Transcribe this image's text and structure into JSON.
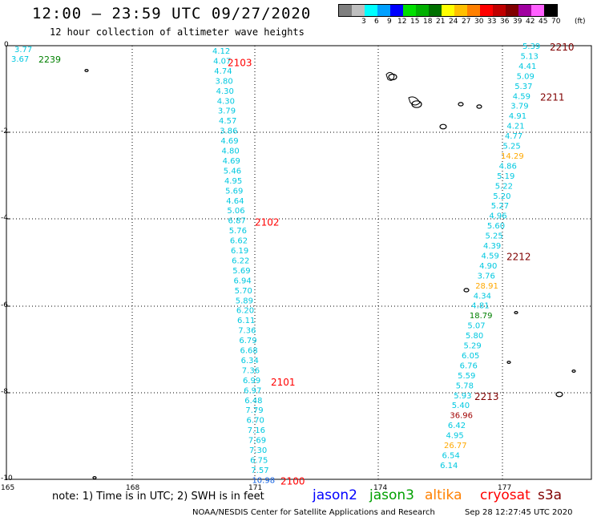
{
  "header": {
    "title": "12:00 – 23:59 UTC 09/27/2020",
    "subtitle": "12 hour collection of altimeter wave heights"
  },
  "legend": {
    "unit": "(ft)",
    "bins": [
      {
        "label": "",
        "color": "#7f7f7f"
      },
      {
        "label": "3",
        "color": "#bfbfbf"
      },
      {
        "label": "6",
        "color": "#00ffff"
      },
      {
        "label": "9",
        "color": "#00a0ff"
      },
      {
        "label": "12",
        "color": "#0000ff"
      },
      {
        "label": "15",
        "color": "#00e000"
      },
      {
        "label": "18",
        "color": "#00b000"
      },
      {
        "label": "21",
        "color": "#007000"
      },
      {
        "label": "24",
        "color": "#ffff00"
      },
      {
        "label": "27",
        "color": "#ffc000"
      },
      {
        "label": "30",
        "color": "#ff8000"
      },
      {
        "label": "33",
        "color": "#ff0000"
      },
      {
        "label": "36",
        "color": "#c00000"
      },
      {
        "label": "39",
        "color": "#800000"
      },
      {
        "label": "42",
        "color": "#a000a0"
      },
      {
        "label": "45",
        "color": "#ff60ff"
      },
      {
        "label": "70",
        "color": "#000000"
      }
    ]
  },
  "axes": {
    "lon_labels": [
      "165",
      "168",
      "171",
      "174",
      "177"
    ],
    "lat_labels": [
      "0",
      "-2",
      "-4",
      "-6",
      "-8",
      "-10"
    ]
  },
  "colors": {
    "cyan": "#00c8e0",
    "blue": "#1060e0",
    "orange": "#ffa800",
    "green": "#008000",
    "red": "#ff0000",
    "darkred": "#a00000",
    "maroon": "#800000"
  },
  "tracks": [
    {
      "name": "track-a",
      "values": [
        {
          "v": "3.77",
          "c": "cyan"
        },
        {
          "v": "3.67",
          "c": "cyan"
        }
      ],
      "time": {
        "text": "2239",
        "c": "green"
      }
    },
    {
      "name": "track-b",
      "values": [
        {
          "v": "4.12",
          "c": "cyan"
        },
        {
          "v": "4.07",
          "c": "cyan"
        },
        {
          "v": "4.74",
          "c": "cyan"
        },
        {
          "v": "3.80",
          "c": "cyan"
        },
        {
          "v": "4.30",
          "c": "cyan"
        },
        {
          "v": "4.30",
          "c": "cyan"
        },
        {
          "v": "3.79",
          "c": "cyan"
        },
        {
          "v": "4.57",
          "c": "cyan"
        },
        {
          "v": "3.86",
          "c": "cyan"
        },
        {
          "v": "4.69",
          "c": "cyan"
        },
        {
          "v": "4.80",
          "c": "cyan"
        },
        {
          "v": "4.69",
          "c": "cyan"
        },
        {
          "v": "5.46",
          "c": "cyan"
        },
        {
          "v": "4.95",
          "c": "cyan"
        },
        {
          "v": "5.69",
          "c": "cyan"
        },
        {
          "v": "4.64",
          "c": "cyan"
        },
        {
          "v": "5.06",
          "c": "cyan"
        },
        {
          "v": "6.87",
          "c": "cyan"
        },
        {
          "v": "5.76",
          "c": "cyan"
        },
        {
          "v": "6.62",
          "c": "cyan"
        },
        {
          "v": "6.19",
          "c": "cyan"
        },
        {
          "v": "6.22",
          "c": "cyan"
        },
        {
          "v": "5.69",
          "c": "cyan"
        },
        {
          "v": "6.94",
          "c": "cyan"
        },
        {
          "v": "5.70",
          "c": "cyan"
        },
        {
          "v": "5.89",
          "c": "cyan"
        },
        {
          "v": "6.20",
          "c": "cyan"
        },
        {
          "v": "6.11",
          "c": "cyan"
        },
        {
          "v": "7.36",
          "c": "cyan"
        },
        {
          "v": "6.79",
          "c": "cyan"
        },
        {
          "v": "6.68",
          "c": "cyan"
        },
        {
          "v": "6.34",
          "c": "cyan"
        },
        {
          "v": "7.36",
          "c": "cyan"
        },
        {
          "v": "6.99",
          "c": "cyan"
        },
        {
          "v": "6.97",
          "c": "cyan"
        },
        {
          "v": "6.48",
          "c": "cyan"
        },
        {
          "v": "7.79",
          "c": "cyan"
        },
        {
          "v": "6.70",
          "c": "cyan"
        },
        {
          "v": "7.16",
          "c": "cyan"
        },
        {
          "v": "7.69",
          "c": "cyan"
        },
        {
          "v": "7.30",
          "c": "cyan"
        },
        {
          "v": "6.75",
          "c": "cyan"
        },
        {
          "v": "7.57",
          "c": "cyan"
        },
        {
          "v": "10.98",
          "c": "blue"
        }
      ],
      "times": [
        {
          "text": "2103",
          "c": "red",
          "at": 1
        },
        {
          "text": "2102",
          "c": "red",
          "at": 17
        },
        {
          "text": "2101",
          "c": "red",
          "at": 33
        },
        {
          "text": "2100",
          "c": "red",
          "at": 43
        }
      ]
    },
    {
      "name": "track-c",
      "values": [
        {
          "v": "5.39",
          "c": "cyan"
        },
        {
          "v": "5.13",
          "c": "cyan"
        },
        {
          "v": "4.41",
          "c": "cyan"
        },
        {
          "v": "5.09",
          "c": "cyan"
        },
        {
          "v": "5.37",
          "c": "cyan"
        },
        {
          "v": "4.59",
          "c": "cyan"
        },
        {
          "v": "3.79",
          "c": "cyan"
        },
        {
          "v": "4.91",
          "c": "cyan"
        },
        {
          "v": "4.21",
          "c": "cyan"
        },
        {
          "v": "4.77",
          "c": "cyan"
        },
        {
          "v": "5.25",
          "c": "cyan"
        },
        {
          "v": "14.29",
          "c": "orange"
        },
        {
          "v": "4.86",
          "c": "cyan"
        },
        {
          "v": "5.19",
          "c": "cyan"
        },
        {
          "v": "5.22",
          "c": "cyan"
        },
        {
          "v": "5.20",
          "c": "cyan"
        },
        {
          "v": "5.27",
          "c": "cyan"
        },
        {
          "v": "4.96",
          "c": "cyan"
        },
        {
          "v": "5.60",
          "c": "cyan"
        },
        {
          "v": "5.25",
          "c": "cyan"
        },
        {
          "v": "4.39",
          "c": "cyan"
        },
        {
          "v": "4.59",
          "c": "cyan"
        },
        {
          "v": "4.90",
          "c": "cyan"
        },
        {
          "v": "3.76",
          "c": "cyan"
        },
        {
          "v": "28.91",
          "c": "orange"
        },
        {
          "v": "4.34",
          "c": "cyan"
        },
        {
          "v": "4.81",
          "c": "cyan"
        },
        {
          "v": "18.79",
          "c": "green"
        },
        {
          "v": "5.07",
          "c": "cyan"
        },
        {
          "v": "5.80",
          "c": "cyan"
        },
        {
          "v": "5.29",
          "c": "cyan"
        },
        {
          "v": "6.05",
          "c": "cyan"
        },
        {
          "v": "6.76",
          "c": "cyan"
        },
        {
          "v": "5.59",
          "c": "cyan"
        },
        {
          "v": "5.78",
          "c": "cyan"
        },
        {
          "v": "5.93",
          "c": "cyan"
        },
        {
          "v": "5.40",
          "c": "cyan"
        },
        {
          "v": "36.96",
          "c": "darkred"
        },
        {
          "v": "6.42",
          "c": "cyan"
        },
        {
          "v": "4.95",
          "c": "cyan"
        },
        {
          "v": "26.77",
          "c": "orange"
        },
        {
          "v": "6.54",
          "c": "cyan"
        },
        {
          "v": "6.14",
          "c": "cyan"
        }
      ],
      "times": [
        {
          "text": "2210",
          "c": "maroon",
          "at": 0
        },
        {
          "text": "2211",
          "c": "maroon",
          "at": 5
        },
        {
          "text": "2212",
          "c": "maroon",
          "at": 21
        },
        {
          "text": "2213",
          "c": "maroon",
          "at": 35
        }
      ]
    }
  ],
  "footer": {
    "note": "note:  1) Time is in UTC;  2) SWH is in feet",
    "satellites": [
      {
        "name": "jason2",
        "color": "#0000ff"
      },
      {
        "name": "jason3",
        "color": "#00a000"
      },
      {
        "name": "altika",
        "color": "#ff8000"
      },
      {
        "name": "cryosat",
        "color": "#ff0000"
      },
      {
        "name": "s3a",
        "color": "#800000"
      }
    ],
    "credit": "NOAA/NESDIS Center for Satellite Applications and Research",
    "generated": "Sep 28 12:27:45 UTC 2020"
  }
}
